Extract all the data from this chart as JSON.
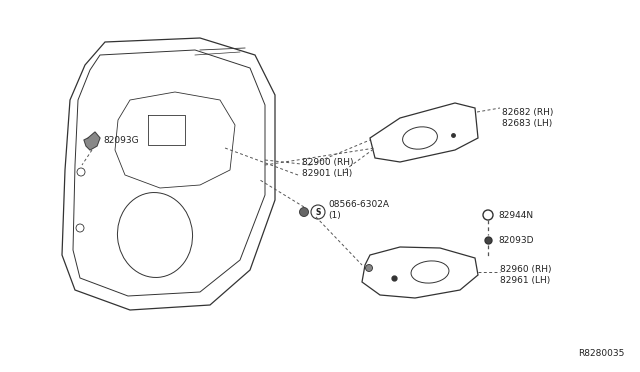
{
  "bg_color": "#ffffff",
  "line_color": "#333333",
  "text_color": "#222222",
  "diagram_id": "R8280035",
  "label_fs": 6.5,
  "parts_labels": {
    "82093G": "82093G",
    "82900": "82900 (RH)\n82901 (LH)",
    "08566": "08566-6302A\n(1)",
    "82682": "82682 (RH)\n82683 (LH)",
    "82944N": "82944N",
    "82093D": "82093D",
    "82960": "82960 (RH)\n82961 (LH)"
  }
}
